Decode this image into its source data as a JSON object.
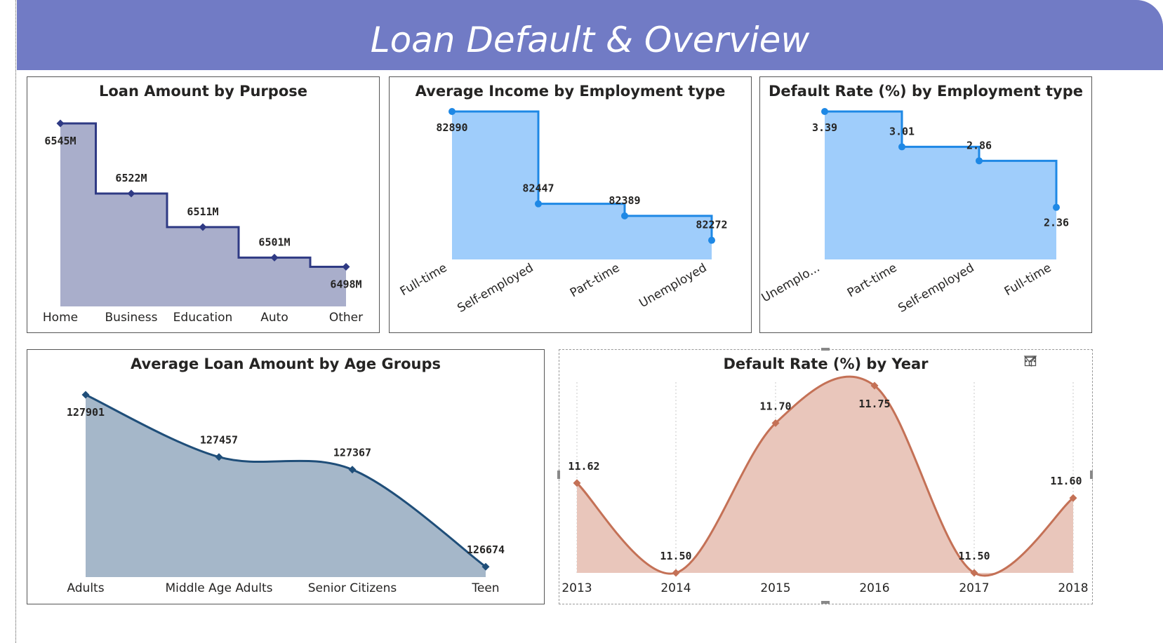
{
  "header": {
    "title": "Loan Default & Overview"
  },
  "panels": {
    "purpose": {
      "title": "Loan Amount by Purpose",
      "chart_data": {
        "type": "area",
        "interpolation": "step",
        "categories": [
          "Home",
          "Business",
          "Education",
          "Auto",
          "Other"
        ],
        "values": [
          6545,
          6522,
          6511,
          6501,
          6498
        ],
        "labels": [
          "6545M",
          "6522M",
          "6511M",
          "6501M",
          "6498M"
        ],
        "unit": "M",
        "color": "#2f3a84",
        "fill": "#a9aecb"
      }
    },
    "income": {
      "title": "Average Income by Employment type",
      "chart_data": {
        "type": "area",
        "interpolation": "step",
        "categories": [
          "Full-time",
          "Self-employed",
          "Part-time",
          "Unemployed"
        ],
        "values": [
          82890,
          82447,
          82389,
          82272
        ],
        "labels": [
          "82890",
          "82447",
          "82389",
          "82272"
        ],
        "color": "#1e88e5",
        "fill": "#9fcdfb"
      }
    },
    "default_emp": {
      "title": "Default Rate (%) by Employment type",
      "chart_data": {
        "type": "area",
        "interpolation": "step",
        "categories": [
          "Unemplo...",
          "Part-time",
          "Self-employed",
          "Full-time"
        ],
        "values": [
          3.39,
          3.01,
          2.86,
          2.36
        ],
        "labels": [
          "3.39",
          "3.01",
          "2.86",
          "2.36"
        ],
        "color": "#1e88e5",
        "fill": "#9fcdfb"
      }
    },
    "age": {
      "title": "Average Loan Amount by Age Groups",
      "chart_data": {
        "type": "area",
        "interpolation": "smooth",
        "categories": [
          "Adults",
          "Middle Age Adults",
          "Senior Citizens",
          "Teen"
        ],
        "values": [
          127901,
          127457,
          127367,
          126674
        ],
        "labels": [
          "127901",
          "127457",
          "127367",
          "126674"
        ],
        "color": "#1f4e79",
        "fill": "#a5b7c9"
      }
    },
    "year": {
      "title": "Default Rate (%) by Year",
      "chart_data": {
        "type": "area",
        "interpolation": "smooth",
        "categories": [
          "2013",
          "2014",
          "2015",
          "2016",
          "2017",
          "2018"
        ],
        "values": [
          11.62,
          11.5,
          11.7,
          11.75,
          11.5,
          11.6
        ],
        "labels": [
          "11.62",
          "11.50",
          "11.70",
          "11.75",
          "11.50",
          "11.60"
        ],
        "color": "#c47156",
        "fill": "#e9c6bb",
        "grid": "vertical-dotted"
      },
      "tools": {
        "filter_icon": "filter-icon",
        "focus_icon": "focus-mode-icon",
        "more_icon": "more-options-icon"
      }
    }
  }
}
